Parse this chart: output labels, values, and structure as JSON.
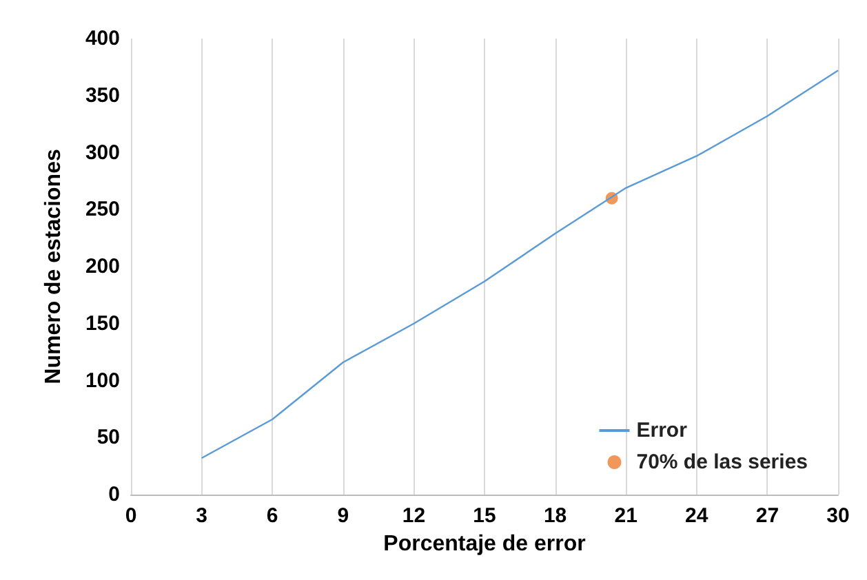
{
  "chart_data": {
    "type": "line",
    "xlabel": "Porcentaje de error",
    "ylabel": "Numero de estaciones",
    "x": [
      3,
      6,
      9,
      12,
      15,
      18,
      21,
      24,
      27,
      30
    ],
    "series": [
      {
        "name": "Error",
        "color": "#5b9bd5",
        "values": [
          32,
          66,
          116,
          150,
          187,
          229,
          269,
          297,
          332,
          372
        ],
        "marker": "none"
      },
      {
        "name": "70% de las series",
        "type": "scatter",
        "color": "#ed7d31",
        "x": [
          20.4
        ],
        "values": [
          260
        ],
        "marker": "circle"
      }
    ],
    "xlim": [
      0,
      30
    ],
    "xticks": [
      0,
      3,
      6,
      9,
      12,
      15,
      18,
      21,
      24,
      27,
      30
    ],
    "ylim": [
      0,
      400
    ],
    "yticks": [
      0,
      50,
      100,
      150,
      200,
      250,
      300,
      350,
      400
    ],
    "grid": "x",
    "legend": "bottom right"
  }
}
